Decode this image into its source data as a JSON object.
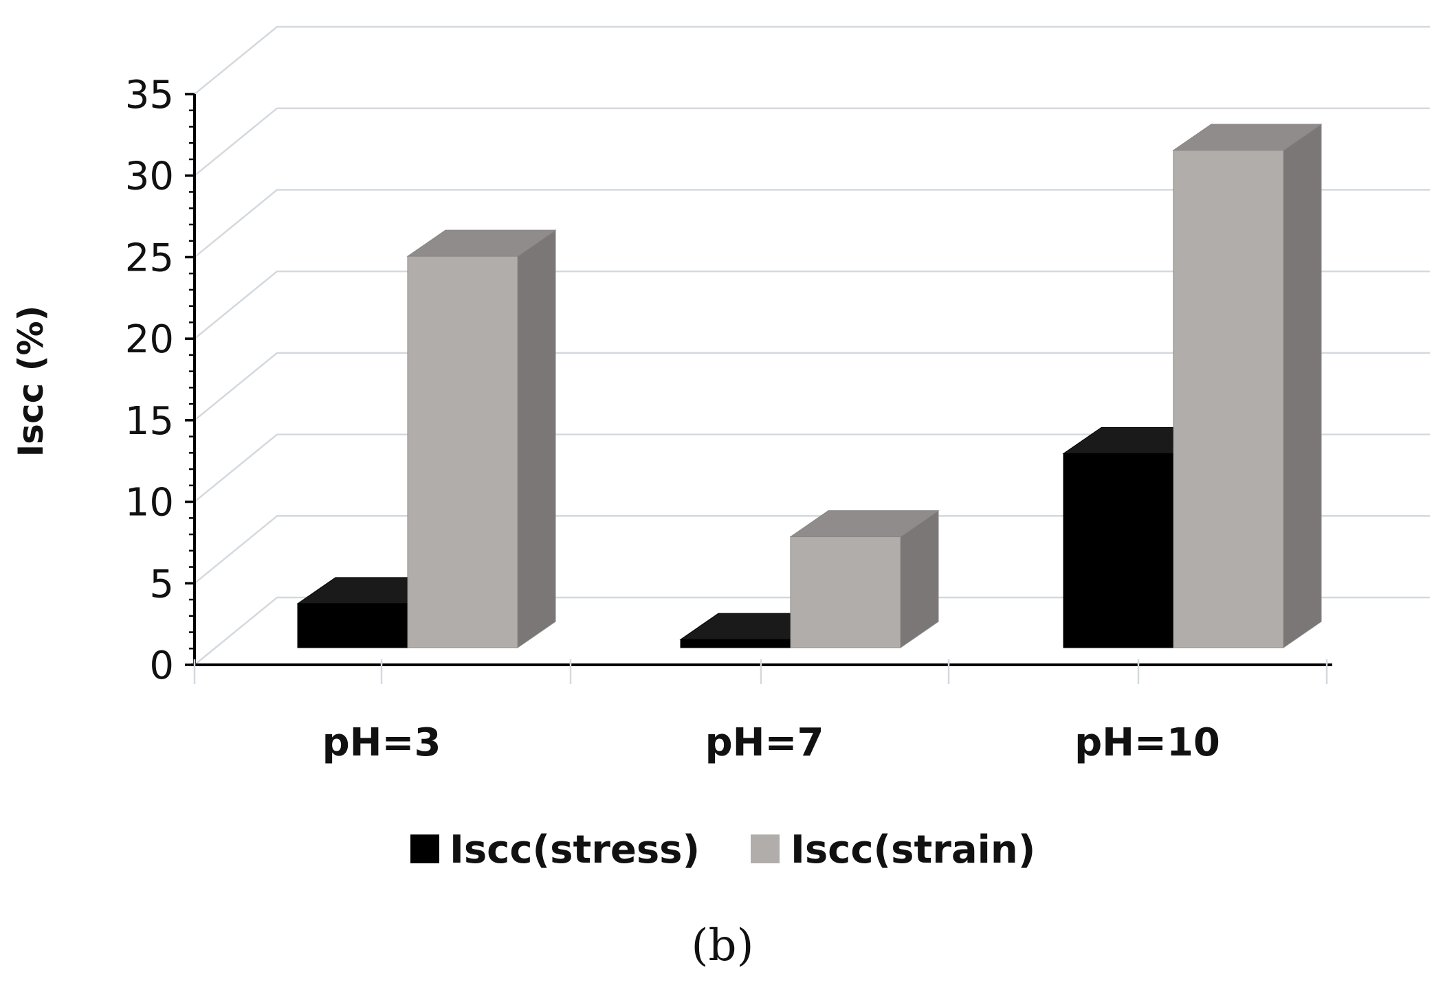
{
  "chart_data": {
    "type": "bar",
    "style": "3d",
    "categories": [
      "pH=3",
      "pH=7",
      "pH=10"
    ],
    "series": [
      {
        "name": "Iscc(stress)",
        "values": [
          2.7,
          0.5,
          11.9
        ],
        "color": "#000000"
      },
      {
        "name": "Iscc(strain)",
        "values": [
          24,
          6.8,
          30.5
        ],
        "color": "#b0adab"
      }
    ],
    "ylabel": "Iscc (%)",
    "yticks": [
      0,
      5,
      10,
      15,
      20,
      25,
      30,
      35
    ],
    "ylim": [
      0,
      35
    ],
    "grid": true,
    "legend_position": "bottom"
  },
  "caption": "(b)",
  "colors": {
    "gridline": "#d4d9de",
    "strain_side": "#7a7776",
    "strain_top": "#8f8c8b",
    "stress_top": "#1a1a1a",
    "axis": "#000000"
  }
}
